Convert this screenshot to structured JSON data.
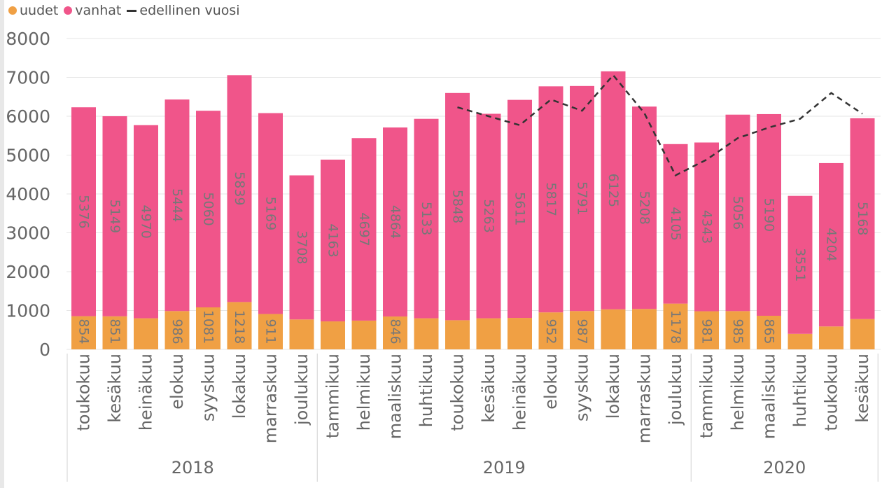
{
  "legend": {
    "new_label": "uudet",
    "old_label": "vanhat",
    "prev_label": "edellinen vuosi"
  },
  "colors": {
    "new": "#F0A044",
    "old": "#F0558A",
    "prev_line": "#333333",
    "grid": "#e6e6e6",
    "axis_text": "#666666",
    "value_text": "#777777"
  },
  "chart_data": {
    "type": "bar",
    "stacked": true,
    "ylim": [
      0,
      8000
    ],
    "yticks": [
      0,
      1000,
      2000,
      3000,
      4000,
      5000,
      6000,
      7000,
      8000
    ],
    "grid": true,
    "legend_position": "top-left",
    "categories": [
      "toukokuu",
      "kesäkuu",
      "heinäkuu",
      "elokuu",
      "syyskuu",
      "lokakuu",
      "marraskuu",
      "joulukuu",
      "tammikuu",
      "helmikuu",
      "maaliskuu",
      "huhtikuu",
      "toukokuu",
      "kesäkuu",
      "heinäkuu",
      "elokuu",
      "syyskuu",
      "lokakuu",
      "marraskuu",
      "joulukuu",
      "tammikuu",
      "helmikuu",
      "maaliskuu",
      "huhtikuu",
      "toukokuu",
      "kesäkuu"
    ],
    "years": [
      {
        "label": "2018",
        "count": 8
      },
      {
        "label": "2019",
        "count": 12
      },
      {
        "label": "2020",
        "count": 6
      }
    ],
    "series": [
      {
        "name": "uudet",
        "values": [
          854,
          851,
          800,
          986,
          1081,
          1218,
          911,
          770,
          720,
          740,
          846,
          800,
          750,
          800,
          810,
          952,
          987,
          1030,
          1040,
          1178,
          981,
          985,
          865,
          400,
          590,
          780
        ],
        "labels": [
          "854",
          "851",
          "",
          "986",
          "1081",
          "1218",
          "911",
          "",
          "",
          "",
          "846",
          "",
          "",
          "",
          "",
          "952",
          "987",
          "",
          "",
          "1178",
          "981",
          "985",
          "865",
          "",
          "",
          ""
        ]
      },
      {
        "name": "vanhat",
        "values": [
          5376,
          5149,
          4970,
          5444,
          5060,
          5839,
          5169,
          3708,
          4163,
          4697,
          4864,
          5133,
          5848,
          5263,
          5611,
          5817,
          5791,
          6125,
          5208,
          4105,
          4343,
          5056,
          5190,
          3551,
          4204,
          5168
        ],
        "labels": [
          "5376",
          "5149",
          "4970",
          "5444",
          "5060",
          "5839",
          "5169",
          "3708",
          "4163",
          "4697",
          "4864",
          "5133",
          "5848",
          "5263",
          "5611",
          "5817",
          "5791",
          "6125",
          "5208",
          "4105",
          "4343",
          "5056",
          "5190",
          "3551",
          "4204",
          "5168"
        ]
      },
      {
        "name": "edellinen vuosi",
        "type": "line",
        "values": [
          null,
          null,
          null,
          null,
          null,
          null,
          null,
          null,
          null,
          null,
          null,
          null,
          6230,
          6000,
          5770,
          6430,
          6141,
          7057,
          6080,
          4478,
          4883,
          5437,
          5710,
          5933,
          6598,
          6063
        ]
      }
    ]
  }
}
